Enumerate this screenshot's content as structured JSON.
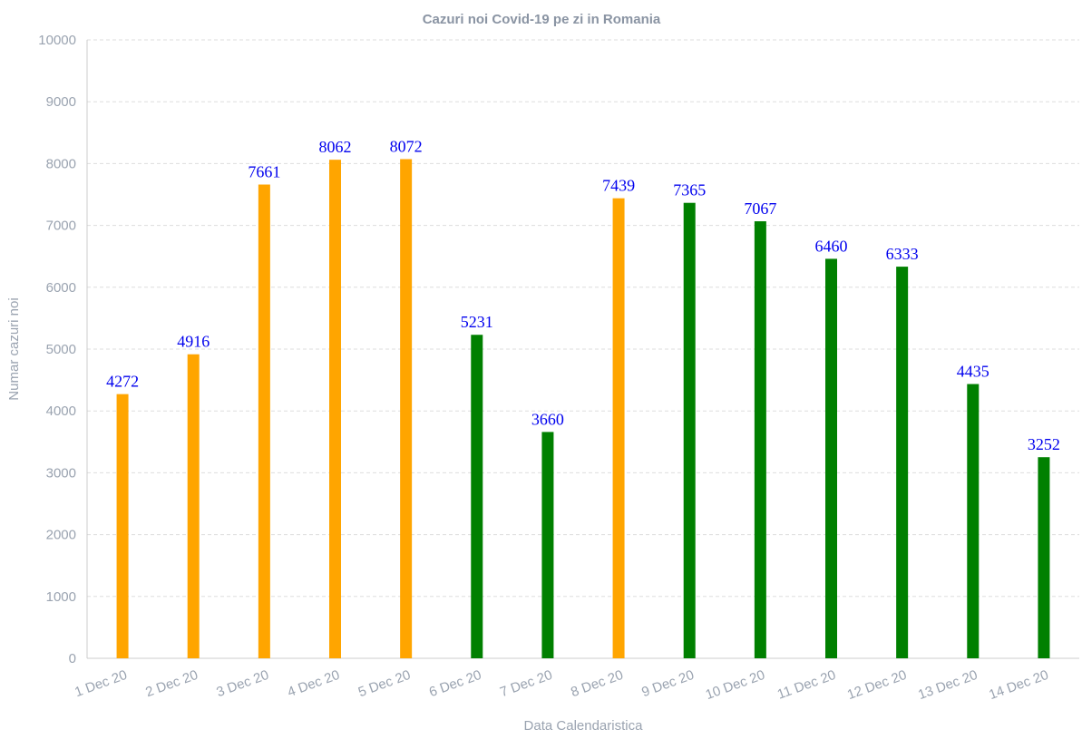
{
  "colors": {
    "orange": "#ffa500",
    "green": "#008000",
    "label": "#0000ee",
    "text": "#9aa3b0"
  },
  "chart_data": {
    "type": "bar",
    "title": "Cazuri noi Covid-19 pe zi in Romania",
    "xlabel": "Data Calendaristica",
    "ylabel": "Numar cazuri noi",
    "ylim": [
      0,
      10000
    ],
    "yticks": [
      0,
      1000,
      2000,
      3000,
      4000,
      5000,
      6000,
      7000,
      8000,
      9000,
      10000
    ],
    "grid": true,
    "categories": [
      "1 Dec 20",
      "2 Dec 20",
      "3 Dec 20",
      "4 Dec 20",
      "5 Dec 20",
      "6 Dec 20",
      "7 Dec 20",
      "8 Dec 20",
      "9 Dec 20",
      "10 Dec 20",
      "11 Dec 20",
      "12 Dec 20",
      "13 Dec 20",
      "14 Dec 20"
    ],
    "values": [
      4272,
      4916,
      7661,
      8062,
      8072,
      5231,
      3660,
      7439,
      7365,
      7067,
      6460,
      6333,
      4435,
      3252
    ],
    "bar_colors": [
      "#ffa500",
      "#ffa500",
      "#ffa500",
      "#ffa500",
      "#ffa500",
      "#008000",
      "#008000",
      "#ffa500",
      "#008000",
      "#008000",
      "#008000",
      "#008000",
      "#008000",
      "#008000"
    ]
  }
}
